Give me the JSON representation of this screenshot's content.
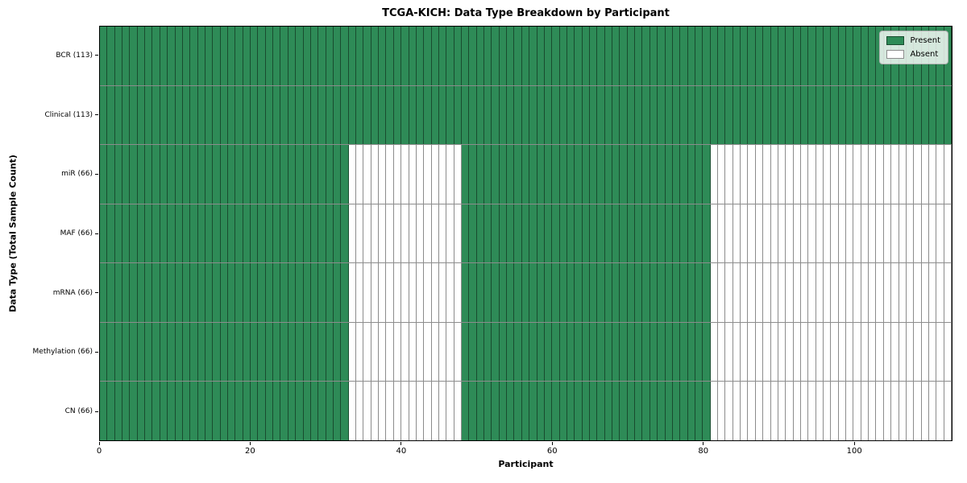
{
  "colors": {
    "present": "#2e8b57",
    "absent": "#ffffff",
    "cell_edge": "rgba(0,0,0,0.45)",
    "spine": "#000000"
  },
  "chart_data": {
    "type": "heatmap",
    "title": "TCGA-KICH: Data Type Breakdown by Participant",
    "xlabel": "Participant",
    "ylabel": "Data Type (Total Sample Count)",
    "x_axis_range": [
      0,
      113
    ],
    "n_participants": 113,
    "x_ticks": [
      0,
      20,
      40,
      60,
      80,
      100
    ],
    "grid": false,
    "legend_position": "upper right",
    "legend": [
      {
        "label": "Present",
        "color": "#2e8b57"
      },
      {
        "label": "Absent",
        "color": "#ffffff"
      }
    ],
    "rows": [
      {
        "label": "BCR (113)",
        "count": 113,
        "present_ranges": [
          [
            0,
            113
          ]
        ]
      },
      {
        "label": "Clinical (113)",
        "count": 113,
        "present_ranges": [
          [
            0,
            113
          ]
        ]
      },
      {
        "label": "miR (66)",
        "count": 66,
        "present_ranges": [
          [
            0,
            33
          ],
          [
            48,
            81
          ]
        ]
      },
      {
        "label": "MAF (66)",
        "count": 66,
        "present_ranges": [
          [
            0,
            33
          ],
          [
            48,
            81
          ]
        ]
      },
      {
        "label": "mRNA (66)",
        "count": 66,
        "present_ranges": [
          [
            0,
            33
          ],
          [
            48,
            81
          ]
        ]
      },
      {
        "label": "Methylation (66)",
        "count": 66,
        "present_ranges": [
          [
            0,
            33
          ],
          [
            48,
            81
          ]
        ]
      },
      {
        "label": "CN (66)",
        "count": 66,
        "present_ranges": [
          [
            0,
            33
          ],
          [
            48,
            81
          ]
        ]
      }
    ]
  }
}
